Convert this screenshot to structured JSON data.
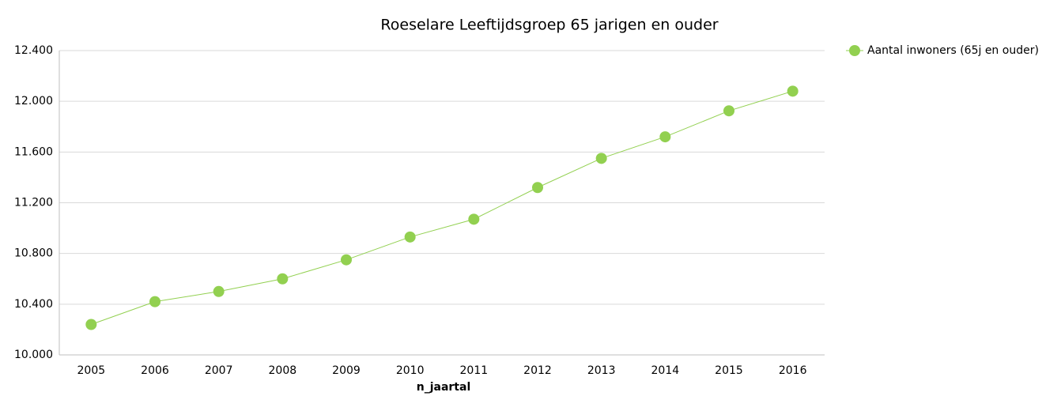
{
  "chart_data": {
    "type": "line",
    "title": "Roeselare  Leeftijdsgroep 65 jarigen en ouder",
    "x_label": "n_jaartal",
    "categories": [
      "2005",
      "2006",
      "2007",
      "2008",
      "2009",
      "2010",
      "2011",
      "2012",
      "2013",
      "2014",
      "2015",
      "2016"
    ],
    "series": [
      {
        "name": "Aantal inwoners (65j en ouder)",
        "color": "#92d050",
        "values": [
          10240,
          10420,
          10500,
          10600,
          10750,
          10930,
          11070,
          11320,
          11550,
          11720,
          11925,
          12080
        ]
      }
    ],
    "ylim": [
      10000,
      12400
    ],
    "yticks": [
      {
        "value": 10000,
        "label": "10.000"
      },
      {
        "value": 10400,
        "label": "10.400"
      },
      {
        "value": 10800,
        "label": "10.800"
      },
      {
        "value": 11200,
        "label": "11.200"
      },
      {
        "value": 11600,
        "label": "11.600"
      },
      {
        "value": 12000,
        "label": "12.000"
      },
      {
        "value": 12400,
        "label": "12.400"
      }
    ],
    "grid": true,
    "legend": "right"
  }
}
